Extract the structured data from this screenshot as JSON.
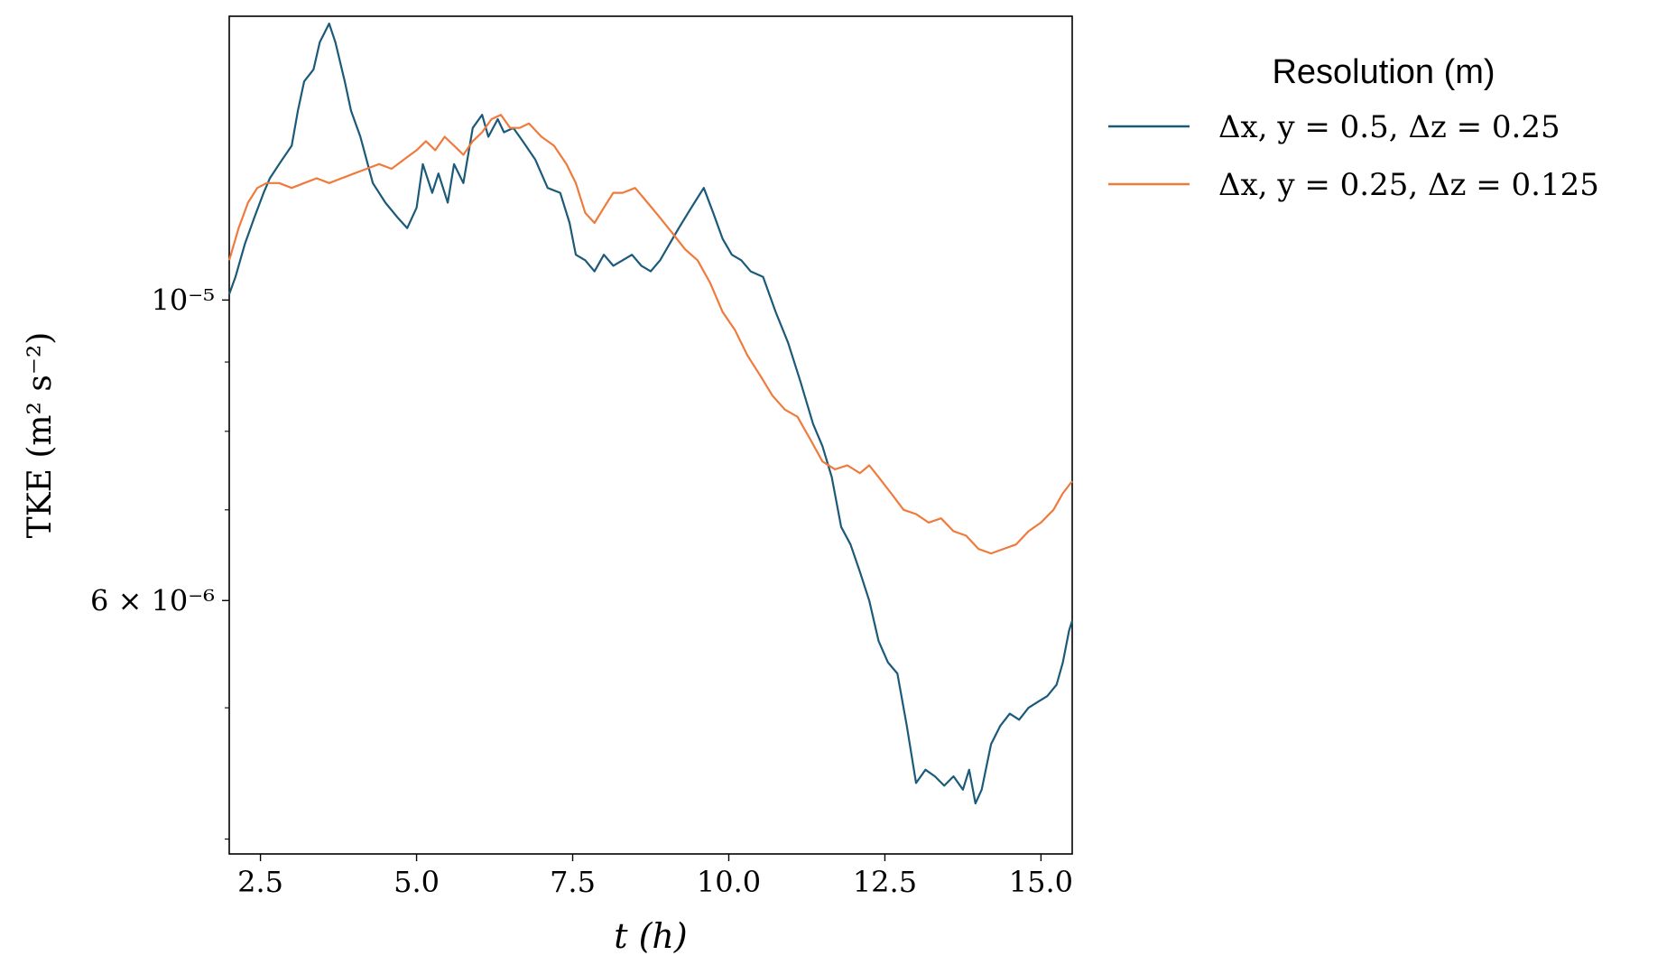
{
  "chart_data": {
    "type": "line",
    "xlabel": "t (h)",
    "ylabel": "TKE (m² s⁻²)",
    "xlim": [
      2.0,
      15.5
    ],
    "ylim": [
      3.9e-06,
      1.62e-05
    ],
    "yscale": "log",
    "xticks": [
      2.5,
      5.0,
      7.5,
      10.0,
      12.5,
      15.0
    ],
    "xtick_labels": [
      "2.5",
      "5.0",
      "7.5",
      "10.0",
      "12.5",
      "15.0"
    ],
    "yticks": [
      1e-05,
      6e-06
    ],
    "ytick_labels": [
      "10⁻⁵",
      "6 × 10⁻⁶"
    ],
    "y_minor_ticks": [
      4e-06,
      5e-06,
      7e-06,
      8e-06,
      9e-06
    ],
    "grid": false,
    "legend": {
      "title": "Resolution (m)",
      "placement": "outside-right"
    },
    "series": [
      {
        "name": "Δx, y = 0.5, Δz = 0.25",
        "color": "#1b5a7a",
        "x": [
          2.0,
          2.1,
          2.25,
          2.4,
          2.55,
          2.65,
          2.8,
          3.0,
          3.1,
          3.2,
          3.35,
          3.45,
          3.6,
          3.7,
          3.85,
          3.95,
          4.1,
          4.3,
          4.5,
          4.7,
          4.85,
          5.0,
          5.1,
          5.25,
          5.35,
          5.5,
          5.6,
          5.75,
          5.9,
          6.05,
          6.15,
          6.3,
          6.4,
          6.55,
          6.7,
          6.9,
          7.1,
          7.3,
          7.45,
          7.55,
          7.7,
          7.85,
          8.0,
          8.15,
          8.3,
          8.45,
          8.6,
          8.75,
          8.9,
          9.05,
          9.2,
          9.35,
          9.5,
          9.6,
          9.75,
          9.9,
          10.05,
          10.2,
          10.35,
          10.55,
          10.75,
          10.95,
          11.15,
          11.35,
          11.5,
          11.65,
          11.8,
          11.95,
          12.1,
          12.25,
          12.4,
          12.55,
          12.7,
          12.85,
          13.0,
          13.15,
          13.3,
          13.45,
          13.6,
          13.75,
          13.85,
          13.95,
          14.05,
          14.2,
          14.35,
          14.5,
          14.65,
          14.8,
          14.95,
          15.1,
          15.25,
          15.35,
          15.45,
          15.5
        ],
        "y": [
          1.01e-05,
          1.04e-05,
          1.1e-05,
          1.15e-05,
          1.2e-05,
          1.23e-05,
          1.26e-05,
          1.3e-05,
          1.38e-05,
          1.45e-05,
          1.48e-05,
          1.55e-05,
          1.6e-05,
          1.55e-05,
          1.45e-05,
          1.38e-05,
          1.32e-05,
          1.22e-05,
          1.18e-05,
          1.15e-05,
          1.13e-05,
          1.17e-05,
          1.26e-05,
          1.2e-05,
          1.24e-05,
          1.18e-05,
          1.26e-05,
          1.22e-05,
          1.34e-05,
          1.37e-05,
          1.32e-05,
          1.36e-05,
          1.33e-05,
          1.34e-05,
          1.31e-05,
          1.27e-05,
          1.21e-05,
          1.2e-05,
          1.14e-05,
          1.08e-05,
          1.07e-05,
          1.05e-05,
          1.08e-05,
          1.06e-05,
          1.07e-05,
          1.08e-05,
          1.06e-05,
          1.05e-05,
          1.07e-05,
          1.1e-05,
          1.13e-05,
          1.16e-05,
          1.19e-05,
          1.21e-05,
          1.16e-05,
          1.11e-05,
          1.08e-05,
          1.07e-05,
          1.05e-05,
          1.04e-05,
          9.8e-06,
          9.3e-06,
          8.7e-06,
          8.1e-06,
          7.8e-06,
          7.4e-06,
          6.8e-06,
          6.6e-06,
          6.3e-06,
          6e-06,
          5.6e-06,
          5.4e-06,
          5.3e-06,
          4.85e-06,
          4.4e-06,
          4.5e-06,
          4.45e-06,
          4.38e-06,
          4.45e-06,
          4.35e-06,
          4.5e-06,
          4.25e-06,
          4.35e-06,
          4.7e-06,
          4.85e-06,
          4.95e-06,
          4.9e-06,
          5e-06,
          5.05e-06,
          5.1e-06,
          5.2e-06,
          5.4e-06,
          5.7e-06,
          5.8e-06
        ]
      },
      {
        "name": "Δx, y = 0.25, Δz = 0.125",
        "color": "#f07a3c",
        "x": [
          2.0,
          2.15,
          2.3,
          2.45,
          2.6,
          2.8,
          3.0,
          3.2,
          3.4,
          3.6,
          3.8,
          4.0,
          4.2,
          4.4,
          4.6,
          4.8,
          5.0,
          5.15,
          5.3,
          5.45,
          5.6,
          5.75,
          5.9,
          6.05,
          6.2,
          6.35,
          6.5,
          6.65,
          6.8,
          7.0,
          7.2,
          7.4,
          7.55,
          7.7,
          7.85,
          8.0,
          8.15,
          8.3,
          8.5,
          8.7,
          8.9,
          9.1,
          9.3,
          9.5,
          9.7,
          9.9,
          10.1,
          10.3,
          10.5,
          10.7,
          10.9,
          11.1,
          11.3,
          11.5,
          11.7,
          11.9,
          12.1,
          12.25,
          12.4,
          12.6,
          12.8,
          13.0,
          13.2,
          13.4,
          13.6,
          13.8,
          14.0,
          14.2,
          14.4,
          14.6,
          14.8,
          15.0,
          15.2,
          15.35,
          15.5
        ],
        "y": [
          1.07e-05,
          1.13e-05,
          1.18e-05,
          1.21e-05,
          1.22e-05,
          1.22e-05,
          1.21e-05,
          1.22e-05,
          1.23e-05,
          1.22e-05,
          1.23e-05,
          1.24e-05,
          1.25e-05,
          1.26e-05,
          1.25e-05,
          1.27e-05,
          1.29e-05,
          1.31e-05,
          1.29e-05,
          1.32e-05,
          1.3e-05,
          1.28e-05,
          1.31e-05,
          1.33e-05,
          1.36e-05,
          1.37e-05,
          1.34e-05,
          1.34e-05,
          1.35e-05,
          1.32e-05,
          1.3e-05,
          1.26e-05,
          1.22e-05,
          1.16e-05,
          1.14e-05,
          1.17e-05,
          1.2e-05,
          1.2e-05,
          1.21e-05,
          1.18e-05,
          1.15e-05,
          1.12e-05,
          1.09e-05,
          1.07e-05,
          1.03e-05,
          9.8e-06,
          9.5e-06,
          9.1e-06,
          8.8e-06,
          8.5e-06,
          8.3e-06,
          8.2e-06,
          7.9e-06,
          7.6e-06,
          7.5e-06,
          7.55e-06,
          7.45e-06,
          7.55e-06,
          7.4e-06,
          7.2e-06,
          7e-06,
          6.95e-06,
          6.85e-06,
          6.9e-06,
          6.75e-06,
          6.7e-06,
          6.55e-06,
          6.5e-06,
          6.55e-06,
          6.6e-06,
          6.75e-06,
          6.85e-06,
          7e-06,
          7.2e-06,
          7.35e-06
        ]
      }
    ]
  }
}
